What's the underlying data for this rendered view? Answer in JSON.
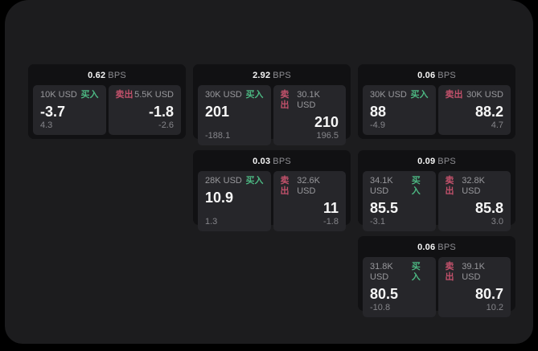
{
  "labels": {
    "buy": "买入",
    "sell": "卖出",
    "bps_unit": "BPS"
  },
  "colors": {
    "background": "#000000",
    "panel": "#1c1c1e",
    "card": "#111113",
    "tile": "#26262a",
    "buy_green": "#4cb782",
    "sell_red": "#c2516b",
    "text_primary": "#f5f5f5",
    "text_secondary": "#98989c"
  },
  "cards": [
    {
      "bps": "0.62",
      "buy": {
        "size": "10K USD",
        "value": "-3.7",
        "sub": "4.3"
      },
      "sell": {
        "size": "5.5K USD",
        "value": "-1.8",
        "sub": "-2.6"
      }
    },
    {
      "bps": "2.92",
      "buy": {
        "size": "30K USD",
        "value": "201",
        "sub": "-188.1"
      },
      "sell": {
        "size": "30.1K USD",
        "value": "210",
        "sub": "196.5"
      }
    },
    {
      "bps": "0.06",
      "buy": {
        "size": "30K USD",
        "value": "88",
        "sub": "-4.9"
      },
      "sell": {
        "size": "30K USD",
        "value": "88.2",
        "sub": "4.7"
      }
    },
    {
      "bps": "0.03",
      "buy": {
        "size": "28K USD",
        "value": "10.9",
        "sub": "1.3"
      },
      "sell": {
        "size": "32.6K USD",
        "value": "11",
        "sub": "-1.8"
      }
    },
    {
      "bps": "0.09",
      "buy": {
        "size": "34.1K USD",
        "value": "85.5",
        "sub": "-3.1"
      },
      "sell": {
        "size": "32.8K USD",
        "value": "85.8",
        "sub": "3.0"
      }
    },
    {
      "bps": "0.06",
      "buy": {
        "size": "31.8K USD",
        "value": "80.5",
        "sub": "-10.8"
      },
      "sell": {
        "size": "39.1K USD",
        "value": "80.7",
        "sub": "10.2"
      }
    }
  ]
}
